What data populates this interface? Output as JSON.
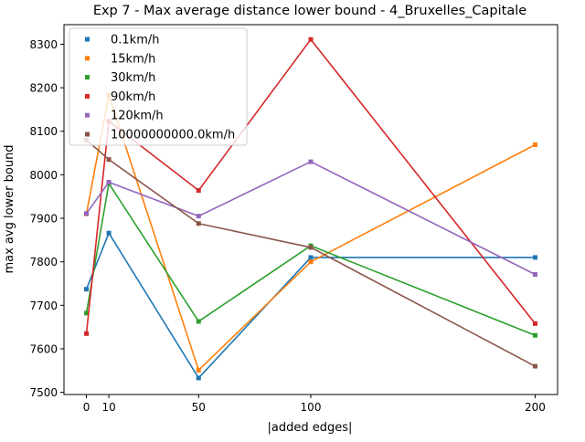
{
  "chart_data": {
    "type": "line",
    "title": "Exp 7 - Max average distance lower bound - 4_Bruxelles_Capitale",
    "xlabel": "|added edges|",
    "ylabel": "max avg lower bound",
    "xlim": [
      -10,
      210
    ],
    "ylim": [
      7495,
      8345
    ],
    "x_ticks": [
      0,
      10,
      50,
      100,
      200
    ],
    "y_ticks": [
      7500,
      7600,
      7700,
      7800,
      7900,
      8000,
      8100,
      8200,
      8300
    ],
    "grid": false,
    "legend_position": "upper-left",
    "x": [
      0,
      10,
      50,
      100,
      200
    ],
    "series": [
      {
        "name": "0.1km/h",
        "color": "#1f77b4",
        "values": [
          7737,
          7866,
          7533,
          7810,
          7810
        ]
      },
      {
        "name": "15km/h",
        "color": "#ff7f0e",
        "values": [
          7910,
          8183,
          7551,
          7800,
          8069
        ]
      },
      {
        "name": "30km/h",
        "color": "#2ca02c",
        "values": [
          7682,
          7980,
          7663,
          7837,
          7631
        ]
      },
      {
        "name": "90km/h",
        "color": "#d62728",
        "values": [
          7635,
          8123,
          7964,
          8311,
          7658
        ]
      },
      {
        "name": "120km/h",
        "color": "#9467bd",
        "values": [
          7911,
          7983,
          7905,
          8030,
          7771
        ]
      },
      {
        "name": "10000000000.0km/h",
        "color": "#8c564b",
        "values": [
          8080,
          8035,
          7888,
          7833,
          7560
        ]
      }
    ]
  }
}
